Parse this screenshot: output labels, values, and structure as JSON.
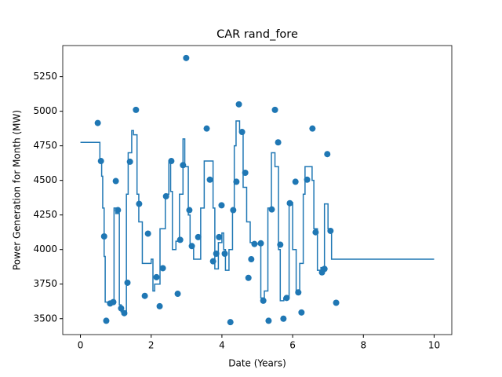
{
  "chart_data": {
    "type": "scatter",
    "title": "CAR rand_fore",
    "x_label": "Date (Years)",
    "y_label": "Power Generation for Month (MW)",
    "xlim": [
      -0.5,
      10.5
    ],
    "ylim": [
      3385,
      5475
    ],
    "xticks": [
      0,
      2,
      4,
      6,
      8,
      10
    ],
    "yticks": [
      3500,
      3750,
      4000,
      4250,
      4500,
      4750,
      5000,
      5250
    ],
    "series": [
      {
        "mark": "step",
        "color": "#1f77b4",
        "x": [
          0,
          0.55,
          0.6,
          0.63,
          0.67,
          0.7,
          0.75,
          0.95,
          1.0,
          1.1,
          1.15,
          1.3,
          1.35,
          1.45,
          1.5,
          1.6,
          1.65,
          1.75,
          1.8,
          2.0,
          2.05,
          2.1,
          2.25,
          2.4,
          2.5,
          2.55,
          2.6,
          2.7,
          2.8,
          2.9,
          2.95,
          3.05,
          3.1,
          3.2,
          3.4,
          3.5,
          3.6,
          3.75,
          3.8,
          3.9,
          4.0,
          4.05,
          4.1,
          4.2,
          4.3,
          4.35,
          4.4,
          4.5,
          4.6,
          4.7,
          4.8,
          4.9,
          5.1,
          5.2,
          5.3,
          5.4,
          5.5,
          5.6,
          5.65,
          5.75,
          5.9,
          6.0,
          6.1,
          6.2,
          6.3,
          6.35,
          6.55,
          6.6,
          6.7,
          6.8,
          6.9,
          7.0,
          7.1,
          7.2,
          10
        ],
        "values": [
          4775,
          4640,
          4530,
          4300,
          3950,
          3620,
          3620,
          4300,
          4260,
          3600,
          3550,
          4400,
          4700,
          4860,
          4830,
          4400,
          4200,
          3900,
          3900,
          3930,
          3700,
          3750,
          4150,
          4400,
          4640,
          4420,
          4000,
          4060,
          4400,
          4800,
          4600,
          4250,
          4020,
          3930,
          4300,
          4640,
          4640,
          4300,
          3860,
          4050,
          4120,
          4000,
          3850,
          4000,
          4300,
          4750,
          4930,
          4850,
          4450,
          4200,
          4050,
          4040,
          3650,
          3700,
          4300,
          4700,
          4600,
          4000,
          3630,
          3650,
          4340,
          4000,
          3700,
          3900,
          4400,
          4600,
          4500,
          4150,
          3850,
          3870,
          4330,
          4150,
          3930,
          3930,
          3930
        ]
      },
      {
        "mark": "point",
        "color": "#1f77b4",
        "x": [
          0.49,
          0.58,
          0.67,
          0.73,
          0.84,
          0.93,
          1.0,
          1.06,
          1.15,
          1.24,
          1.33,
          1.4,
          1.57,
          1.66,
          1.82,
          1.91,
          2.15,
          2.24,
          2.33,
          2.42,
          2.57,
          2.75,
          2.82,
          2.9,
          2.99,
          3.08,
          3.15,
          3.33,
          3.57,
          3.66,
          3.75,
          3.84,
          3.92,
          3.99,
          4.08,
          4.24,
          4.32,
          4.41,
          4.48,
          4.57,
          4.66,
          4.75,
          4.83,
          4.92,
          5.1,
          5.17,
          5.32,
          5.41,
          5.5,
          5.59,
          5.65,
          5.74,
          5.83,
          5.92,
          6.08,
          6.16,
          6.25,
          6.41,
          6.56,
          6.65,
          6.83,
          6.9,
          6.98,
          7.07,
          7.23
        ],
        "values": [
          4915,
          4640,
          4095,
          3485,
          3610,
          3620,
          4495,
          4285,
          3575,
          3540,
          3760,
          4635,
          5010,
          4330,
          3665,
          4115,
          3800,
          3590,
          3865,
          4385,
          4640,
          3680,
          4070,
          4610,
          5385,
          4285,
          4025,
          4090,
          4875,
          4505,
          3915,
          3970,
          4090,
          4320,
          3970,
          3475,
          4285,
          4490,
          5050,
          4850,
          4555,
          3795,
          3930,
          4040,
          4045,
          3630,
          3485,
          4290,
          5010,
          4775,
          4035,
          3500,
          3650,
          4335,
          4490,
          3690,
          3545,
          4505,
          4875,
          4125,
          3835,
          3860,
          4690,
          4135,
          3615
        ]
      }
    ]
  }
}
